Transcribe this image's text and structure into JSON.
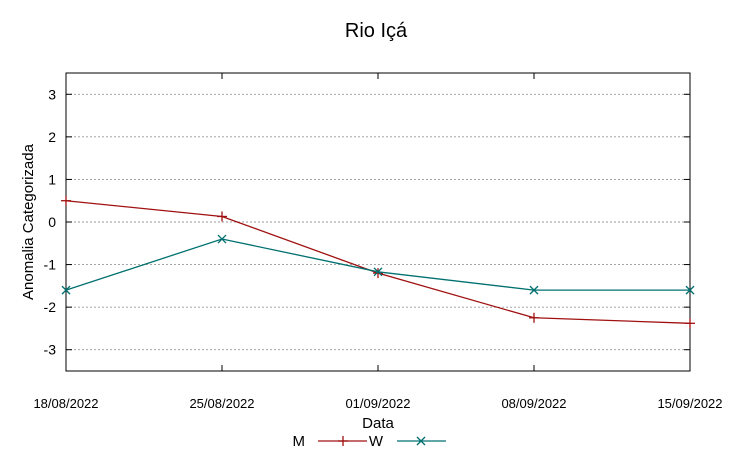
{
  "chart_data": {
    "type": "line",
    "title": "Rio Içá",
    "xlabel": "Data",
    "ylabel": "Anomalia Categorizada",
    "categories": [
      "18/08/2022",
      "25/08/2022",
      "01/09/2022",
      "08/09/2022",
      "15/09/2022"
    ],
    "ylim": [
      -3.5,
      3.5
    ],
    "yticks": [
      3,
      2,
      1,
      0,
      -1,
      -2,
      -3
    ],
    "ytick_labels": [
      "3",
      "2",
      "1",
      "0",
      "-1",
      "-2",
      "-3"
    ],
    "grid": true,
    "legend_position": "bottom",
    "series": [
      {
        "name": "M",
        "color": "#a01010",
        "marker": "plus",
        "values": [
          0.5,
          0.13,
          -1.2,
          -2.25,
          -2.38
        ]
      },
      {
        "name": "W",
        "color": "#007070",
        "marker": "cross",
        "values": [
          -1.6,
          -0.4,
          -1.17,
          -1.6,
          -1.6
        ]
      }
    ]
  }
}
